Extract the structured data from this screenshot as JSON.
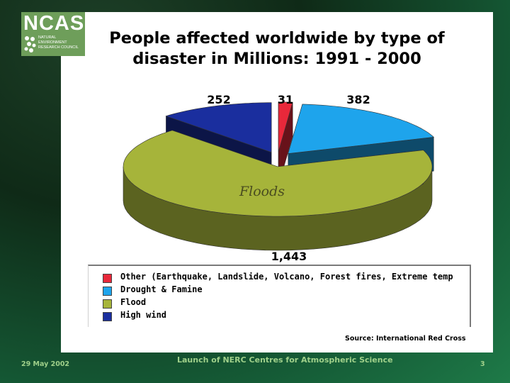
{
  "logo": {
    "abbreviation": "NCAS",
    "line1": "NATURAL",
    "line2": "ENVIRONMENT",
    "line3": "RESEARCH COUNCIL"
  },
  "title_line1": "People affected worldwide by type of",
  "title_line2": "disaster in Millions:  1991 - 2000",
  "chart_data": {
    "type": "pie",
    "title": "People affected worldwide by type of disaster in Millions:  1991 - 2000",
    "categories": [
      "Other (Earthquake, Landslide, Volcano, Forest fires, Extreme temp",
      "Drought & Famine",
      "Flood",
      "High wind"
    ],
    "values": [
      31,
      382,
      1443,
      252
    ],
    "data_labels": [
      "31",
      "382",
      "1,443",
      "252"
    ],
    "colors": [
      "#e8283a",
      "#1ea4ec",
      "#a6b43a",
      "#1a2e9e"
    ],
    "exploded": [
      "Other (Earthquake, Landslide, Volcano, Forest fires, Extreme temp",
      "Drought & Famine",
      "High wind"
    ],
    "annotation": "Floods",
    "legend_position": "bottom",
    "three_d": true
  },
  "source": "Source:  International Red Cross",
  "footer": {
    "date": "29 May 2002",
    "center": "Launch of NERC Centres for Atmospheric Science",
    "page": "3"
  }
}
